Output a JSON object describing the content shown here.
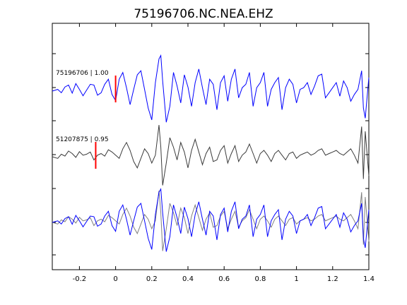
{
  "chart_data": {
    "type": "line",
    "title": "75196706.NC.NEA.EHZ",
    "xlabel": "",
    "ylabel": "",
    "xlim": [
      -0.35,
      1.4
    ],
    "x_ticks": [
      -0.2,
      0,
      0.2,
      0.4,
      0.6,
      0.8,
      1,
      1.2,
      1.4
    ],
    "x_tick_labels": [
      "-0.2",
      "0",
      "0.2",
      "0.4",
      "0.6",
      "0.8",
      "1",
      "1.2",
      "1.4"
    ],
    "grid": false,
    "colors": {
      "primary": "#0000ff",
      "secondary": "#3a3a3a",
      "overlay_gray": "#808080",
      "pick": "#ff0000"
    },
    "traces": [
      {
        "label": "75196706 | 1.00",
        "role": "top",
        "color": "#0000ff",
        "pick_x": 0.0
      },
      {
        "label": "51207875 | 0.95",
        "role": "middle",
        "color": "#3a3a3a",
        "pick_x": -0.11
      },
      {
        "label": "",
        "role": "overlay",
        "color": "#0000ff",
        "overlay_color": "#808080"
      }
    ],
    "series": [
      {
        "x": [
          -0.35,
          -0.32,
          -0.3,
          -0.28,
          -0.26,
          -0.24,
          -0.22,
          -0.2,
          -0.18,
          -0.16,
          -0.14,
          -0.12,
          -0.1,
          -0.08,
          -0.06,
          -0.04,
          -0.02,
          0.0,
          0.02,
          0.04,
          0.06,
          0.08,
          0.1,
          0.12,
          0.14,
          0.16,
          0.18,
          0.2,
          0.22,
          0.24,
          0.25,
          0.26,
          0.28,
          0.3,
          0.32,
          0.34,
          0.36,
          0.38,
          0.4,
          0.42,
          0.44,
          0.46,
          0.48,
          0.5,
          0.52,
          0.54,
          0.56,
          0.58,
          0.6,
          0.62,
          0.64,
          0.66,
          0.68,
          0.7,
          0.72,
          0.74,
          0.76,
          0.78,
          0.8,
          0.82,
          0.84,
          0.86,
          0.88,
          0.9,
          0.92,
          0.94,
          0.96,
          0.98,
          1.0,
          1.02,
          1.04,
          1.06,
          1.08,
          1.1,
          1.12,
          1.14,
          1.16,
          1.18,
          1.2,
          1.22,
          1.24,
          1.26,
          1.28,
          1.3,
          1.32,
          1.34,
          1.36,
          1.37,
          1.38,
          1.4
        ],
        "y": [
          0,
          0.05,
          -0.05,
          0.12,
          0.18,
          -0.06,
          0.22,
          0.05,
          -0.14,
          0.03,
          0.2,
          0.18,
          -0.12,
          -0.05,
          0.2,
          0.35,
          -0.1,
          -0.28,
          0.35,
          0.55,
          0.1,
          -0.4,
          0.05,
          0.48,
          0.6,
          0.05,
          -0.5,
          -0.85,
          0.25,
          0.95,
          1.05,
          0.3,
          -0.92,
          -0.45,
          0.55,
          0.15,
          -0.35,
          0.48,
          0.12,
          -0.45,
          0.25,
          0.65,
          0.1,
          -0.4,
          0.35,
          0.2,
          -0.55,
          0.25,
          0.45,
          -0.3,
          0.35,
          0.65,
          -0.2,
          0.1,
          0.2,
          0.55,
          -0.45,
          0.1,
          0.25,
          0.55,
          -0.45,
          0.05,
          0.25,
          0.4,
          -0.55,
          0.1,
          0.35,
          0.2,
          -0.35,
          0.05,
          0.1,
          0.25,
          -0.1,
          0.15,
          0.45,
          0.5,
          -0.2,
          -0.05,
          0.1,
          0.25,
          -0.15,
          0.3,
          0.1,
          -0.3,
          -0.1,
          0.05,
          0.6,
          -0.5,
          -0.8,
          0.4
        ]
      },
      {
        "x": [
          -0.35,
          -0.32,
          -0.3,
          -0.28,
          -0.26,
          -0.24,
          -0.22,
          -0.2,
          -0.18,
          -0.16,
          -0.14,
          -0.12,
          -0.1,
          -0.08,
          -0.06,
          -0.04,
          -0.02,
          0.0,
          0.02,
          0.04,
          0.06,
          0.08,
          0.1,
          0.12,
          0.14,
          0.16,
          0.18,
          0.2,
          0.22,
          0.24,
          0.25,
          0.26,
          0.28,
          0.3,
          0.32,
          0.34,
          0.36,
          0.38,
          0.4,
          0.42,
          0.44,
          0.46,
          0.48,
          0.5,
          0.52,
          0.54,
          0.56,
          0.58,
          0.6,
          0.62,
          0.64,
          0.66,
          0.68,
          0.7,
          0.72,
          0.74,
          0.76,
          0.78,
          0.8,
          0.82,
          0.84,
          0.86,
          0.88,
          0.9,
          0.92,
          0.94,
          0.96,
          0.98,
          1.0,
          1.02,
          1.04,
          1.06,
          1.08,
          1.1,
          1.12,
          1.14,
          1.16,
          1.18,
          1.2,
          1.22,
          1.24,
          1.26,
          1.28,
          1.3,
          1.32,
          1.34,
          1.36,
          1.37,
          1.38,
          1.4
        ],
        "y": [
          0,
          -0.05,
          0.08,
          0.02,
          0.18,
          0.1,
          -0.02,
          0.16,
          0.05,
          0.08,
          0.15,
          -0.1,
          0.05,
          0.1,
          0.02,
          0.22,
          0.15,
          0.05,
          -0.05,
          0.25,
          0.45,
          0.2,
          -0.15,
          -0.35,
          -0.05,
          0.25,
          0.1,
          -0.2,
          0.05,
          1.0,
          0.3,
          -0.9,
          -0.2,
          0.6,
          0.3,
          -0.1,
          0.45,
          0.15,
          -0.35,
          0.2,
          0.55,
          0.15,
          -0.25,
          0.1,
          0.3,
          -0.15,
          -0.1,
          0.2,
          0.35,
          -0.2,
          0.1,
          0.35,
          -0.15,
          0.05,
          0.15,
          0.4,
          0.1,
          -0.2,
          0.1,
          0.2,
          0.05,
          -0.15,
          0.1,
          0.2,
          0.05,
          -0.1,
          0.1,
          0.15,
          -0.05,
          0.05,
          0.1,
          0.15,
          0.05,
          0.1,
          0.2,
          0.25,
          0.05,
          0.1,
          0.15,
          0.2,
          0.1,
          0.05,
          0.15,
          0.25,
          0.05,
          -0.2,
          0.95,
          -0.7,
          0.8,
          -0.6
        ]
      },
      {
        "x": [
          -0.35,
          -0.32,
          -0.3,
          -0.28,
          -0.26,
          -0.24,
          -0.22,
          -0.2,
          -0.18,
          -0.16,
          -0.14,
          -0.12,
          -0.1,
          -0.08,
          -0.06,
          -0.04,
          -0.02,
          0.0,
          0.02,
          0.04,
          0.06,
          0.08,
          0.1,
          0.12,
          0.14,
          0.16,
          0.18,
          0.2,
          0.22,
          0.24,
          0.25,
          0.26,
          0.28,
          0.3,
          0.32,
          0.34,
          0.36,
          0.38,
          0.4,
          0.42,
          0.44,
          0.46,
          0.48,
          0.5,
          0.52,
          0.54,
          0.56,
          0.58,
          0.6,
          0.62,
          0.64,
          0.66,
          0.68,
          0.7,
          0.72,
          0.74,
          0.76,
          0.78,
          0.8,
          0.82,
          0.84,
          0.86,
          0.88,
          0.9,
          0.92,
          0.94,
          0.96,
          0.98,
          1.0,
          1.02,
          1.04,
          1.06,
          1.08,
          1.1,
          1.12,
          1.14,
          1.16,
          1.18,
          1.2,
          1.22,
          1.24,
          1.26,
          1.28,
          1.3,
          1.32,
          1.34,
          1.36,
          1.37,
          1.38,
          1.4
        ],
        "y": [
          0,
          0.05,
          -0.05,
          0.12,
          0.18,
          -0.06,
          0.22,
          0.05,
          -0.14,
          0.03,
          0.2,
          0.18,
          -0.12,
          -0.05,
          0.2,
          0.35,
          -0.1,
          -0.28,
          0.35,
          0.55,
          0.1,
          -0.4,
          0.05,
          0.48,
          0.6,
          0.05,
          -0.5,
          -0.85,
          0.25,
          0.95,
          1.05,
          0.3,
          -0.92,
          -0.45,
          0.55,
          0.15,
          -0.35,
          0.48,
          0.12,
          -0.45,
          0.25,
          0.65,
          0.1,
          -0.4,
          0.35,
          0.2,
          -0.55,
          0.25,
          0.45,
          -0.3,
          0.35,
          0.65,
          -0.2,
          0.1,
          0.2,
          0.55,
          -0.45,
          0.1,
          0.25,
          0.55,
          -0.45,
          0.05,
          0.25,
          0.4,
          -0.55,
          0.1,
          0.35,
          0.2,
          -0.35,
          0.05,
          0.1,
          0.25,
          -0.1,
          0.15,
          0.45,
          0.5,
          -0.2,
          -0.05,
          0.1,
          0.25,
          -0.15,
          0.3,
          0.1,
          -0.3,
          -0.1,
          0.05,
          0.6,
          -0.5,
          -0.8,
          0.4
        ]
      },
      {
        "x": [
          -0.35,
          -0.32,
          -0.3,
          -0.28,
          -0.26,
          -0.24,
          -0.22,
          -0.2,
          -0.18,
          -0.16,
          -0.14,
          -0.12,
          -0.1,
          -0.08,
          -0.06,
          -0.04,
          -0.02,
          0.0,
          0.02,
          0.04,
          0.06,
          0.08,
          0.1,
          0.12,
          0.14,
          0.16,
          0.18,
          0.2,
          0.22,
          0.24,
          0.25,
          0.26,
          0.28,
          0.3,
          0.32,
          0.34,
          0.36,
          0.38,
          0.4,
          0.42,
          0.44,
          0.46,
          0.48,
          0.5,
          0.52,
          0.54,
          0.56,
          0.58,
          0.6,
          0.62,
          0.64,
          0.66,
          0.68,
          0.7,
          0.72,
          0.74,
          0.76,
          0.78,
          0.8,
          0.82,
          0.84,
          0.86,
          0.88,
          0.9,
          0.92,
          0.94,
          0.96,
          0.98,
          1.0,
          1.02,
          1.04,
          1.06,
          1.08,
          1.1,
          1.12,
          1.14,
          1.16,
          1.18,
          1.2,
          1.22,
          1.24,
          1.26,
          1.28,
          1.3,
          1.32,
          1.34,
          1.36,
          1.37,
          1.38,
          1.4
        ],
        "y": [
          0,
          -0.05,
          0.08,
          0.02,
          0.18,
          0.1,
          -0.02,
          0.16,
          0.05,
          0.08,
          0.15,
          -0.1,
          0.05,
          0.1,
          0.02,
          0.22,
          0.15,
          0.05,
          -0.05,
          0.25,
          0.45,
          0.2,
          -0.15,
          -0.35,
          -0.05,
          0.25,
          0.1,
          -0.2,
          0.05,
          1.0,
          0.3,
          -0.9,
          -0.2,
          0.6,
          0.3,
          -0.1,
          0.45,
          0.15,
          -0.35,
          0.2,
          0.55,
          0.15,
          -0.25,
          0.1,
          0.3,
          -0.15,
          -0.1,
          0.2,
          0.35,
          -0.2,
          0.1,
          0.35,
          -0.15,
          0.05,
          0.15,
          0.4,
          0.1,
          -0.2,
          0.1,
          0.2,
          0.05,
          -0.15,
          0.1,
          0.2,
          0.05,
          -0.1,
          0.1,
          0.15,
          -0.05,
          0.05,
          0.1,
          0.15,
          0.05,
          0.1,
          0.2,
          0.25,
          0.05,
          0.1,
          0.15,
          0.2,
          0.1,
          0.05,
          0.15,
          0.25,
          0.05,
          -0.2,
          0.95,
          -0.7,
          0.8,
          -0.6
        ]
      }
    ]
  }
}
